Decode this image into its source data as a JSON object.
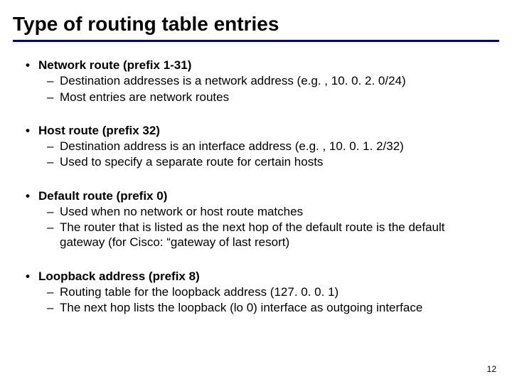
{
  "title": "Type of routing table entries",
  "underline_color": "#000080",
  "background_color": "#ffffff",
  "title_fontsize": 28,
  "body_fontsize": 17,
  "bullets": [
    {
      "heading": "Network route (prefix 1-31)",
      "subs": [
        "Destination addresses is a network address (e.g. , 10. 0. 2. 0/24)",
        "Most entries are network routes"
      ]
    },
    {
      "heading": "Host route (prefix 32)",
      "subs": [
        "Destination address is an interface address (e.g. , 10. 0. 1. 2/32)",
        "Used to specify a separate route for certain hosts"
      ]
    },
    {
      "heading": "Default route (prefix 0)",
      "subs": [
        "Used when no network or host route matches",
        "The router that is listed as the next hop of the default route is the default gateway (for Cisco: “gateway of last resort)"
      ]
    },
    {
      "heading": "Loopback address (prefix 8)",
      "subs": [
        "Routing table for the loopback address (127. 0. 0. 1)",
        "The next hop lists the loopback (lo 0) interface as outgoing interface"
      ]
    }
  ],
  "page_number": "12"
}
